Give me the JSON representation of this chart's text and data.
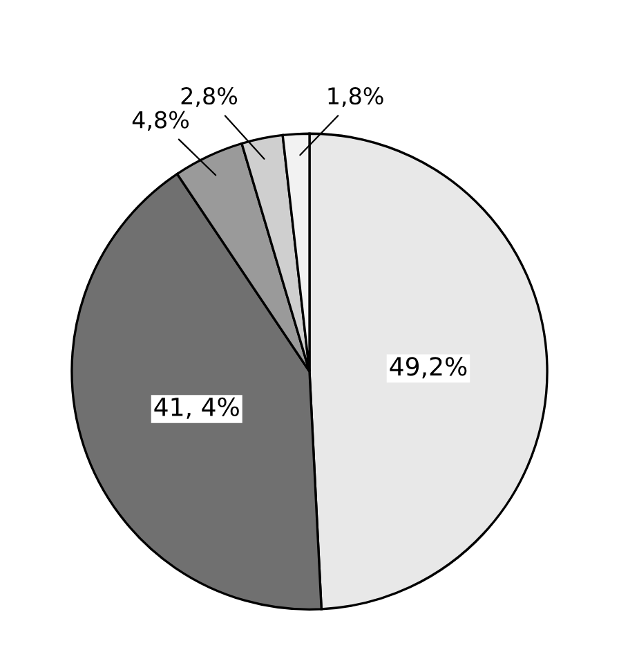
{
  "chart_data": {
    "type": "pie",
    "categories": [
      null,
      null,
      null,
      null,
      null
    ],
    "values": [
      49.2,
      41.4,
      4.8,
      2.8,
      1.8
    ],
    "value_labels": [
      "49,2%",
      "41, 4%",
      "4,8%",
      "2,8%",
      "1,8%"
    ],
    "colors": [
      "#e8e8e8",
      "#707070",
      "#9a9a9a",
      "#cfcfcf",
      "#f2f2f2"
    ]
  }
}
